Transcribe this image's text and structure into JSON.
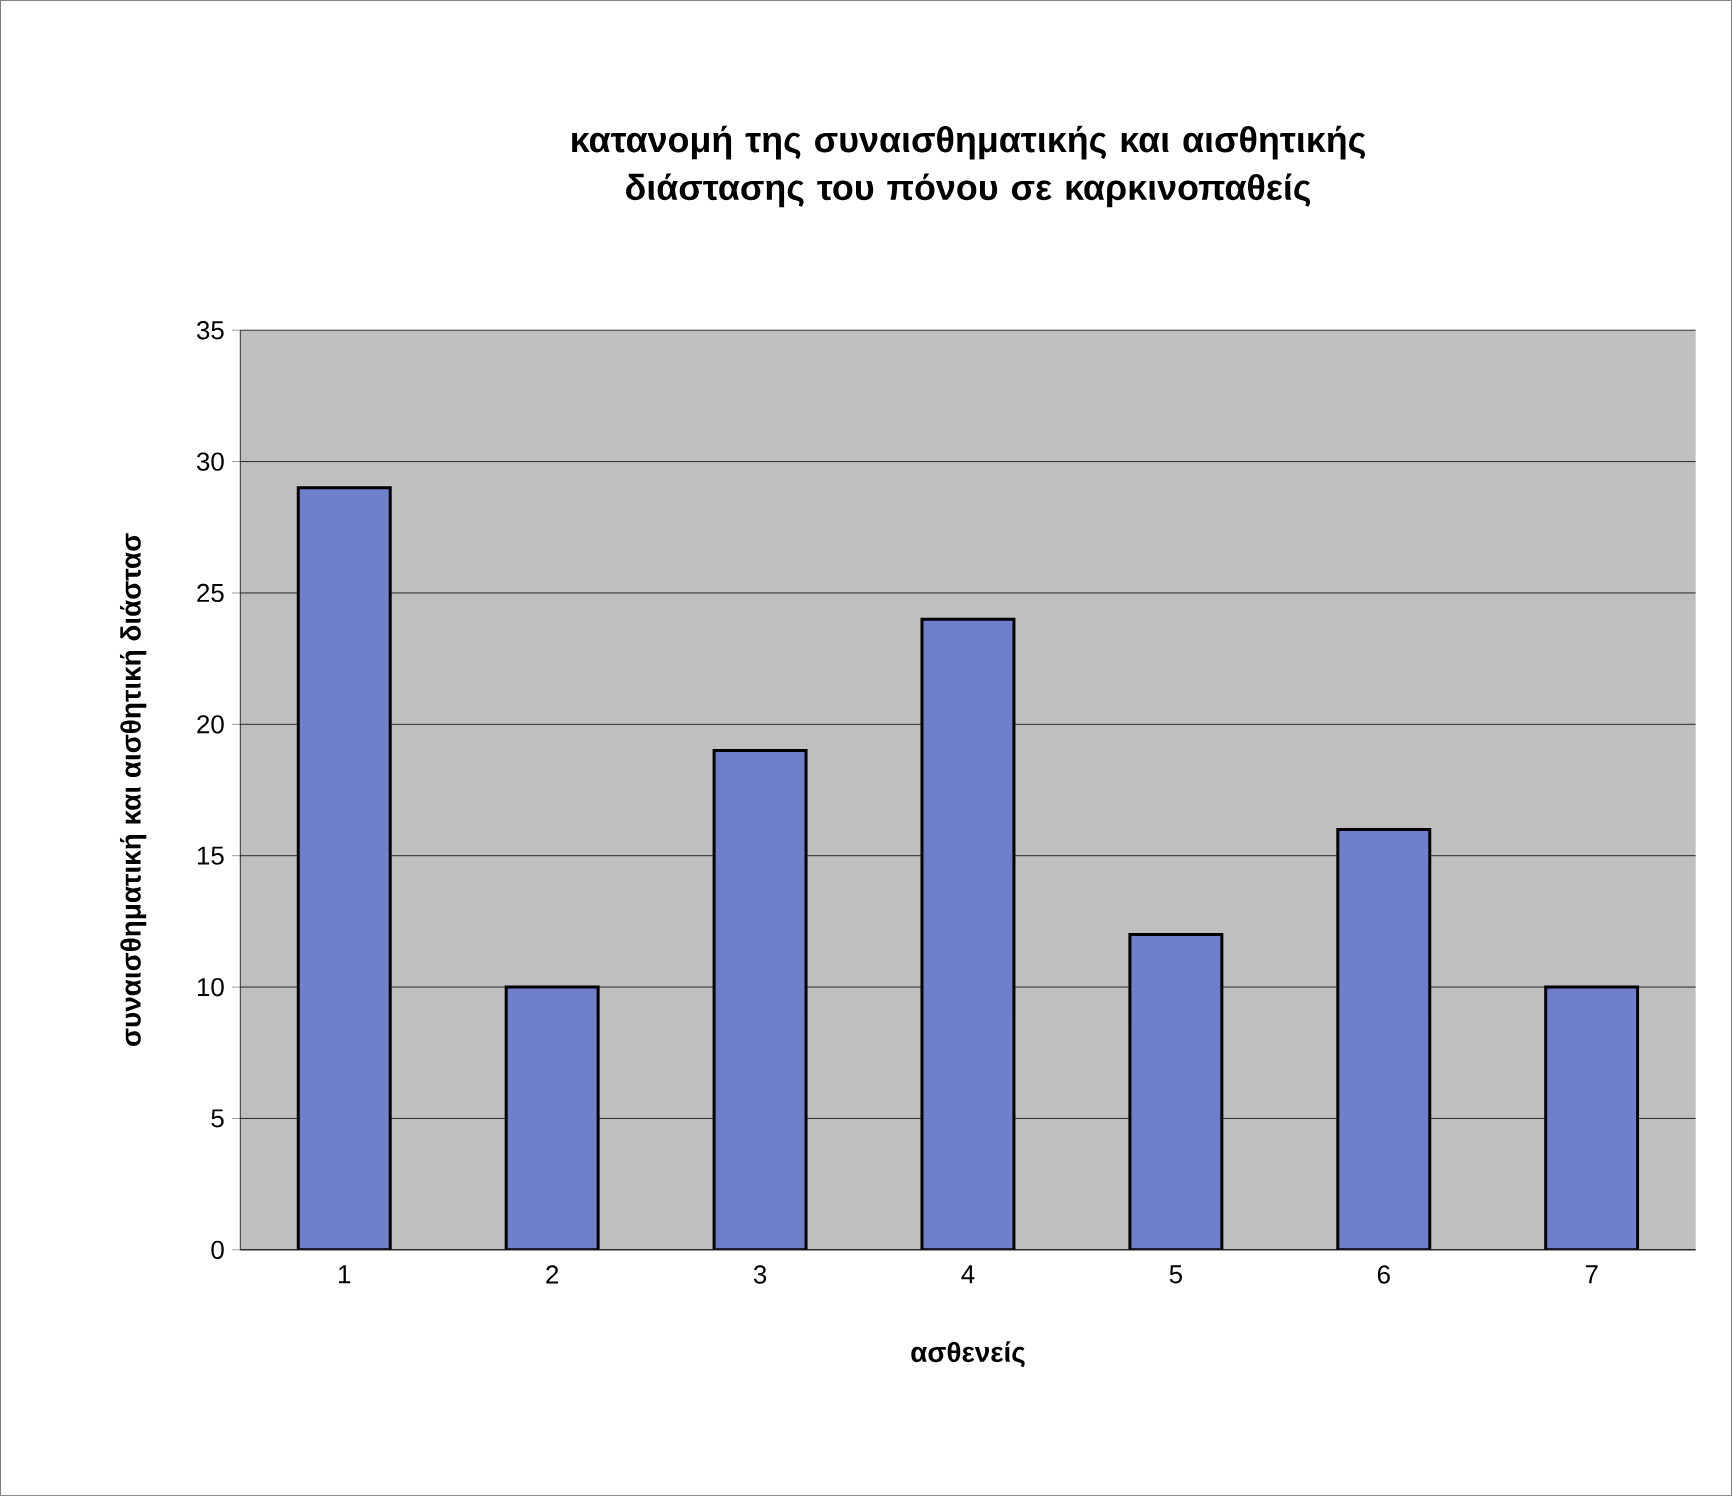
{
  "chart_data": {
    "type": "bar",
    "title": "κατανομή της συναισθηματικής και αισθητικής διάστασης του πόνου σε καρκινοπαθείς",
    "xlabel": "ασθενείς",
    "ylabel": "συναισθηματική και αισθητική διάστασ",
    "categories": [
      "1",
      "2",
      "3",
      "4",
      "5",
      "6",
      "7"
    ],
    "values": [
      29,
      10,
      19,
      24,
      12,
      16,
      10
    ],
    "color": "#6f7fcc",
    "ylim": [
      0,
      35
    ],
    "yticks": [
      0,
      5,
      10,
      15,
      20,
      25,
      30,
      35
    ],
    "grid": "y"
  }
}
